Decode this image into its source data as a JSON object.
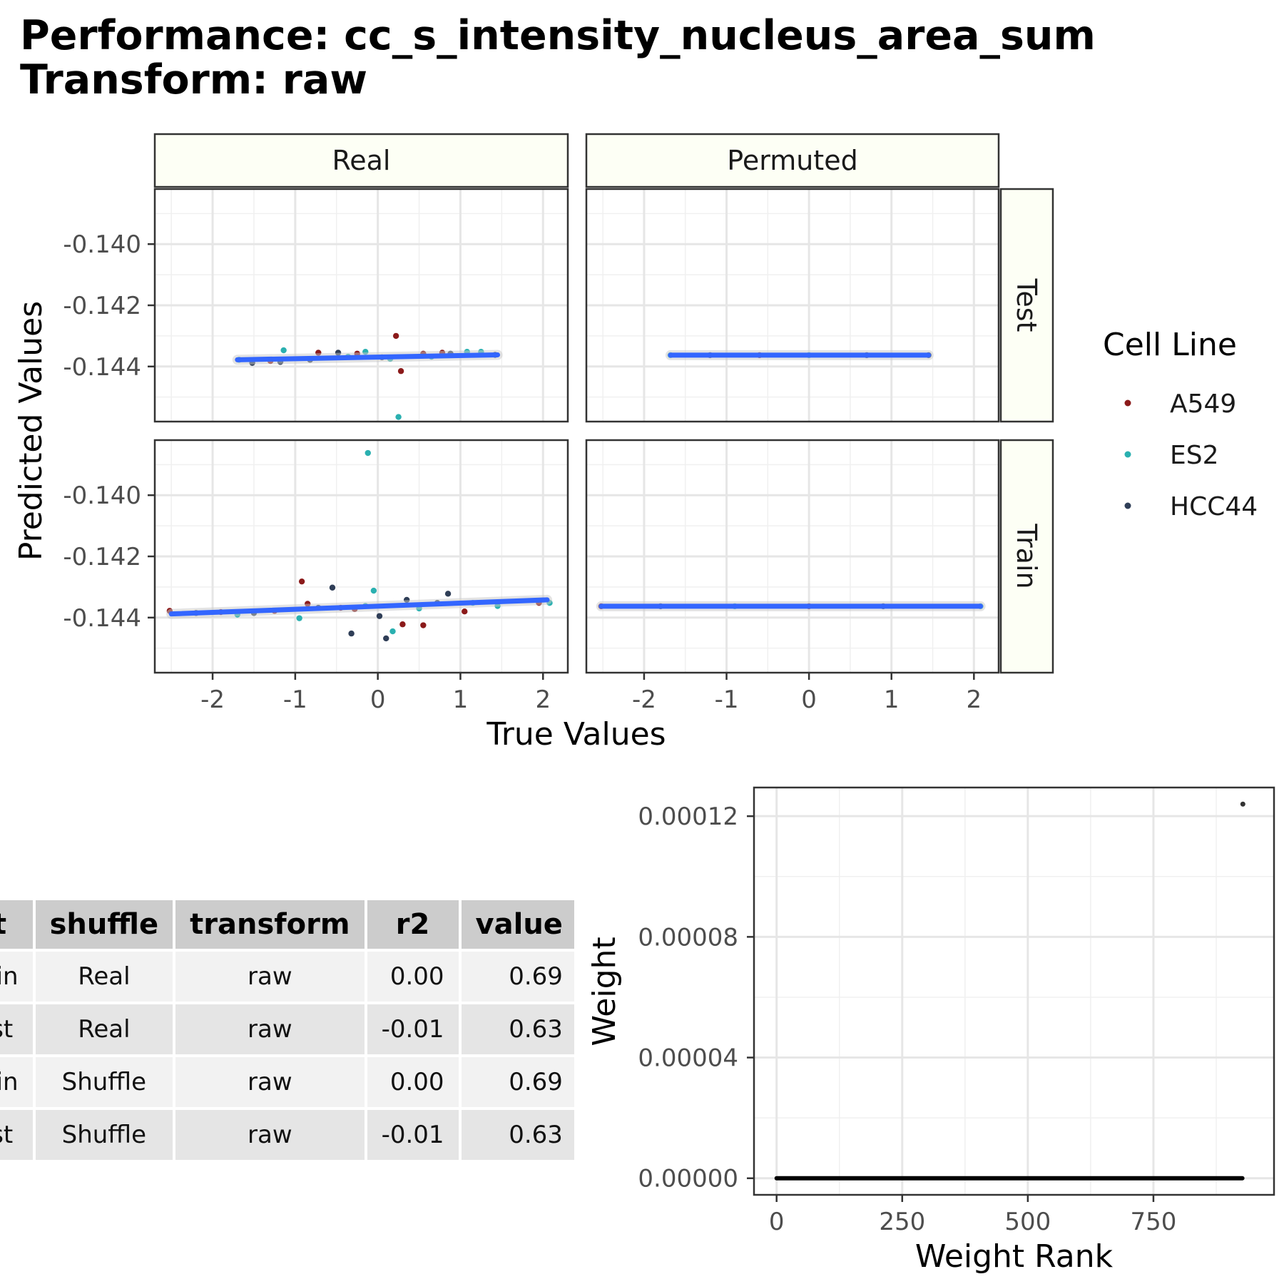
{
  "title_line1": "Performance: cc_s_intensity_nucleus_area_sum",
  "title_line2": "Transform: raw",
  "colors": {
    "A549": "#8b1a1a",
    "ES2": "#2ab0b0",
    "HCC44": "#2f3e57",
    "fit_line": "#3366ff",
    "strip_fill": "#fdfff5"
  },
  "chart_data": [
    {
      "type": "scatter",
      "facet_cols": [
        "Real",
        "Permuted"
      ],
      "facet_rows": [
        "Test",
        "Train"
      ],
      "xlabel": "True Values",
      "ylabel": "Predicted Values",
      "xlim": [
        -2.7,
        2.3
      ],
      "ylim": [
        -0.1458,
        -0.1382
      ],
      "x_ticks": [
        "-2",
        "-1",
        "0",
        "1",
        "2"
      ],
      "x_tick_values": [
        -2,
        -1,
        0,
        1,
        2
      ],
      "y_ticks": [
        "-0.140",
        "-0.142",
        "-0.144"
      ],
      "y_tick_values": [
        -0.14,
        -0.142,
        -0.144
      ],
      "legend_title": "Cell Line",
      "legend_entries": [
        "A549",
        "ES2",
        "HCC44"
      ],
      "legend_position": "right",
      "panels": [
        {
          "col": "Real",
          "row": "Test",
          "fit": [
            [
              -1.7,
              -0.14378
            ],
            [
              1.45,
              -0.14362
            ]
          ],
          "points": [
            [
              -1.68,
              -0.14378,
              "ES2"
            ],
            [
              -1.52,
              -0.14388,
              "HCC44"
            ],
            [
              -1.3,
              -0.14382,
              "A549"
            ],
            [
              -1.18,
              -0.14385,
              "HCC44"
            ],
            [
              -1.14,
              -0.14347,
              "ES2"
            ],
            [
              -0.82,
              -0.14378,
              "HCC44"
            ],
            [
              -0.72,
              -0.14355,
              "A549"
            ],
            [
              -0.48,
              -0.14355,
              "HCC44"
            ],
            [
              -0.36,
              -0.14368,
              "ES2"
            ],
            [
              -0.25,
              -0.14358,
              "A549"
            ],
            [
              -0.15,
              -0.14352,
              "ES2"
            ],
            [
              0.05,
              -0.1437,
              "HCC44"
            ],
            [
              0.15,
              -0.14375,
              "ES2"
            ],
            [
              0.22,
              -0.143,
              "A549"
            ],
            [
              0.28,
              -0.14415,
              "A549"
            ],
            [
              0.25,
              -0.14565,
              "ES2"
            ],
            [
              0.55,
              -0.14358,
              "A549"
            ],
            [
              0.65,
              -0.14368,
              "ES2"
            ],
            [
              0.78,
              -0.14355,
              "A549"
            ],
            [
              0.88,
              -0.14358,
              "HCC44"
            ],
            [
              1.08,
              -0.14352,
              "ES2"
            ],
            [
              1.25,
              -0.14352,
              "ES2"
            ],
            [
              1.42,
              -0.14362,
              "HCC44"
            ]
          ]
        },
        {
          "col": "Permuted",
          "row": "Test",
          "fit": [
            [
              -1.68,
              -0.14363
            ],
            [
              1.45,
              -0.14363
            ]
          ],
          "points": [
            [
              -1.68,
              -0.14363,
              "ES2"
            ],
            [
              -1.2,
              -0.14363,
              "HCC44"
            ],
            [
              -0.6,
              -0.14363,
              "A549"
            ],
            [
              0.0,
              -0.14363,
              "ES2"
            ],
            [
              0.7,
              -0.14363,
              "HCC44"
            ],
            [
              1.45,
              -0.14363,
              "HCC44"
            ]
          ]
        },
        {
          "col": "Real",
          "row": "Train",
          "fit": [
            [
              -2.5,
              -0.14388
            ],
            [
              2.05,
              -0.14342
            ]
          ],
          "points": [
            [
              -2.52,
              -0.14378,
              "A549"
            ],
            [
              -2.2,
              -0.14385,
              "HCC44"
            ],
            [
              -1.9,
              -0.14382,
              "A549"
            ],
            [
              -1.7,
              -0.1439,
              "ES2"
            ],
            [
              -1.5,
              -0.14385,
              "HCC44"
            ],
            [
              -1.25,
              -0.14378,
              "A549"
            ],
            [
              -0.95,
              -0.14402,
              "ES2"
            ],
            [
              -0.92,
              -0.14282,
              "A549"
            ],
            [
              -0.85,
              -0.14355,
              "A549"
            ],
            [
              -0.72,
              -0.14368,
              "HCC44"
            ],
            [
              -0.55,
              -0.14302,
              "HCC44"
            ],
            [
              -0.45,
              -0.14368,
              "A549"
            ],
            [
              -0.32,
              -0.14452,
              "HCC44"
            ],
            [
              -0.28,
              -0.14372,
              "A549"
            ],
            [
              -0.15,
              -0.14362,
              "ES2"
            ],
            [
              -0.12,
              -0.13862,
              "ES2"
            ],
            [
              -0.05,
              -0.14312,
              "ES2"
            ],
            [
              0.02,
              -0.14395,
              "HCC44"
            ],
            [
              0.1,
              -0.14468,
              "HCC44"
            ],
            [
              0.18,
              -0.14445,
              "ES2"
            ],
            [
              0.3,
              -0.14422,
              "A549"
            ],
            [
              0.35,
              -0.14342,
              "HCC44"
            ],
            [
              0.5,
              -0.1437,
              "ES2"
            ],
            [
              0.55,
              -0.14425,
              "A549"
            ],
            [
              0.72,
              -0.14352,
              "HCC44"
            ],
            [
              0.85,
              -0.14322,
              "HCC44"
            ],
            [
              1.05,
              -0.1438,
              "A549"
            ],
            [
              1.15,
              -0.14352,
              "ES2"
            ],
            [
              1.45,
              -0.14362,
              "ES2"
            ],
            [
              1.95,
              -0.14352,
              "A549"
            ],
            [
              2.08,
              -0.14352,
              "ES2"
            ]
          ]
        },
        {
          "col": "Permuted",
          "row": "Train",
          "fit": [
            [
              -2.52,
              -0.14363
            ],
            [
              2.08,
              -0.14363
            ]
          ],
          "points": [
            [
              -2.52,
              -0.14363,
              "A549"
            ],
            [
              -1.8,
              -0.14363,
              "HCC44"
            ],
            [
              -0.9,
              -0.14363,
              "ES2"
            ],
            [
              0.0,
              -0.14363,
              "A549"
            ],
            [
              0.9,
              -0.14363,
              "HCC44"
            ],
            [
              2.08,
              -0.14363,
              "ES2"
            ]
          ]
        }
      ]
    },
    {
      "type": "scatter",
      "xlabel": "Weight Rank",
      "ylabel": "Weight",
      "xlim": [
        -45,
        990
      ],
      "ylim": [
        -5.5e-06,
        0.0001295
      ],
      "x_ticks": [
        "0",
        "250",
        "500",
        "750"
      ],
      "x_tick_values": [
        0,
        250,
        500,
        750
      ],
      "y_ticks": [
        "0.00012",
        "0.00008",
        "0.00004",
        "0.00000"
      ],
      "y_tick_values": [
        0.00012,
        8e-05,
        4e-05,
        0.0
      ],
      "points_summary": "weights of ranks 1 to 928 are ~0; rank 928 has the largest weight",
      "line_start": [
        0,
        0.0
      ],
      "line_end": [
        927,
        0.0
      ],
      "outlier": [
        928,
        0.000124
      ]
    }
  ],
  "table": {
    "headers": [
      "fit",
      "shuffle",
      "transform",
      "r2",
      "value"
    ],
    "rows": [
      [
        "Train",
        "Real",
        "raw",
        "0.00",
        "0.69"
      ],
      [
        "Test",
        "Real",
        "raw",
        "-0.01",
        "0.63"
      ],
      [
        "Train",
        "Shuffle",
        "raw",
        "0.00",
        "0.69"
      ],
      [
        "Test",
        "Shuffle",
        "raw",
        "-0.01",
        "0.63"
      ]
    ]
  }
}
